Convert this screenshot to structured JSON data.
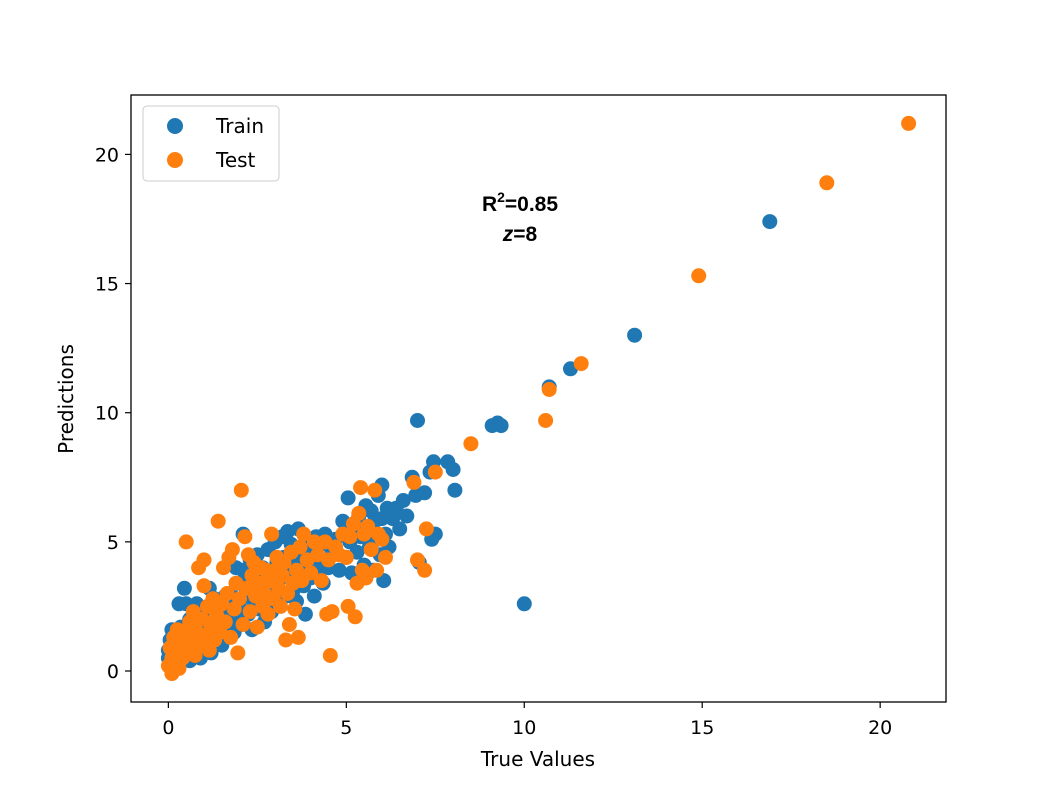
{
  "chart_data": {
    "type": "scatter",
    "xlabel": "True Values",
    "ylabel": "Predictions",
    "xlim": [
      -1.05,
      21.85
    ],
    "ylim": [
      -1.2,
      22.3
    ],
    "xticks": [
      0,
      5,
      10,
      15,
      20
    ],
    "yticks": [
      0,
      5,
      10,
      15,
      20
    ],
    "legend_position": "top-left",
    "annotation": {
      "r2_prefix": "R",
      "r2_sup": "2",
      "r2_value": "=0.85",
      "z_var": "z",
      "z_value": "=8"
    },
    "series": [
      {
        "name": "Train",
        "color": "#1f77b4",
        "points": [
          [
            0.0,
            0.5
          ],
          [
            0.0,
            0.8
          ],
          [
            0.05,
            1.2
          ],
          [
            0.1,
            1.6
          ],
          [
            0.1,
            0.3
          ],
          [
            0.15,
            1.0
          ],
          [
            0.2,
            0.6
          ],
          [
            0.2,
            1.4
          ],
          [
            0.25,
            0.2
          ],
          [
            0.3,
            0.9
          ],
          [
            0.3,
            2.6
          ],
          [
            0.35,
            1.7
          ],
          [
            0.4,
            0.5
          ],
          [
            0.4,
            1.2
          ],
          [
            0.45,
            3.2
          ],
          [
            0.5,
            2.6
          ],
          [
            0.5,
            0.8
          ],
          [
            0.55,
            1.5
          ],
          [
            0.6,
            2.0
          ],
          [
            0.6,
            0.4
          ],
          [
            0.65,
            1.1
          ],
          [
            0.7,
            1.8
          ],
          [
            0.7,
            2.2
          ],
          [
            0.75,
            0.7
          ],
          [
            0.8,
            1.4
          ],
          [
            0.8,
            2.6
          ],
          [
            0.85,
            0.9
          ],
          [
            0.9,
            1.7
          ],
          [
            0.9,
            0.5
          ],
          [
            0.95,
            1.3
          ],
          [
            1.0,
            2.0
          ],
          [
            1.0,
            0.8
          ],
          [
            1.05,
            1.5
          ],
          [
            1.1,
            2.4
          ],
          [
            1.1,
            1.0
          ],
          [
            1.15,
            3.2
          ],
          [
            1.2,
            1.6
          ],
          [
            1.2,
            0.7
          ],
          [
            1.25,
            2.1
          ],
          [
            1.3,
            1.2
          ],
          [
            1.3,
            2.8
          ],
          [
            1.35,
            1.9
          ],
          [
            1.4,
            1.4
          ],
          [
            1.45,
            2.3
          ],
          [
            1.5,
            1.0
          ],
          [
            1.5,
            2.0
          ],
          [
            1.55,
            1.6
          ],
          [
            1.6,
            2.9
          ],
          [
            1.65,
            1.3
          ],
          [
            1.7,
            2.4
          ],
          [
            1.7,
            1.8
          ],
          [
            1.75,
            3.0
          ],
          [
            1.8,
            2.2
          ],
          [
            1.85,
            1.5
          ],
          [
            1.9,
            2.7
          ],
          [
            1.9,
            4.0
          ],
          [
            1.95,
            2.0
          ],
          [
            2.0,
            3.4
          ],
          [
            2.0,
            2.5
          ],
          [
            2.05,
            1.8
          ],
          [
            2.1,
            3.9
          ],
          [
            2.1,
            5.3
          ],
          [
            2.15,
            2.9
          ],
          [
            2.2,
            3.6
          ],
          [
            2.25,
            2.2
          ],
          [
            2.3,
            4.3
          ],
          [
            2.3,
            3.1
          ],
          [
            2.35,
            1.6
          ],
          [
            2.4,
            2.7
          ],
          [
            2.45,
            3.8
          ],
          [
            2.5,
            4.5
          ],
          [
            2.5,
            3.2
          ],
          [
            2.55,
            2.4
          ],
          [
            2.6,
            3.6
          ],
          [
            2.65,
            4.0
          ],
          [
            2.7,
            2.9
          ],
          [
            2.7,
            1.9
          ],
          [
            2.75,
            3.4
          ],
          [
            2.8,
            4.7
          ],
          [
            2.85,
            3.0
          ],
          [
            2.9,
            2.3
          ],
          [
            2.95,
            3.9
          ],
          [
            3.0,
            5.0
          ],
          [
            3.0,
            3.3
          ],
          [
            3.05,
            4.2
          ],
          [
            3.1,
            2.6
          ],
          [
            3.15,
            3.6
          ],
          [
            3.2,
            5.2
          ],
          [
            3.25,
            4.4
          ],
          [
            3.3,
            2.9
          ],
          [
            3.35,
            5.4
          ],
          [
            3.4,
            3.7
          ],
          [
            3.45,
            4.9
          ],
          [
            3.5,
            3.1
          ],
          [
            3.55,
            4.3
          ],
          [
            3.6,
            2.7
          ],
          [
            3.65,
            5.5
          ],
          [
            3.7,
            3.9
          ],
          [
            3.75,
            4.6
          ],
          [
            3.8,
            3.3
          ],
          [
            3.85,
            2.2
          ],
          [
            3.9,
            4.1
          ],
          [
            3.95,
            5.0
          ],
          [
            4.0,
            3.6
          ],
          [
            4.05,
            4.5
          ],
          [
            4.1,
            2.9
          ],
          [
            4.15,
            5.2
          ],
          [
            4.2,
            3.8
          ],
          [
            4.25,
            4.3
          ],
          [
            4.3,
            4.9
          ],
          [
            4.35,
            3.4
          ],
          [
            4.4,
            5.3
          ],
          [
            4.5,
            4.0
          ],
          [
            4.6,
            4.7
          ],
          [
            4.7,
            5.1
          ],
          [
            4.8,
            3.9
          ],
          [
            4.9,
            5.8
          ],
          [
            5.0,
            4.4
          ],
          [
            5.05,
            6.7
          ],
          [
            5.1,
            5.0
          ],
          [
            5.15,
            3.8
          ],
          [
            5.2,
            5.5
          ],
          [
            5.3,
            4.6
          ],
          [
            5.35,
            6.0
          ],
          [
            5.4,
            5.2
          ],
          [
            5.5,
            4.1
          ],
          [
            5.55,
            6.4
          ],
          [
            5.6,
            5.6
          ],
          [
            5.65,
            4.8
          ],
          [
            5.7,
            6.2
          ],
          [
            5.75,
            3.9
          ],
          [
            5.8,
            5.8
          ],
          [
            5.85,
            5.1
          ],
          [
            5.9,
            6.8
          ],
          [
            5.95,
            4.5
          ],
          [
            6.0,
            5.9
          ],
          [
            6.0,
            7.2
          ],
          [
            6.05,
            3.5
          ],
          [
            6.1,
            5.3
          ],
          [
            6.15,
            6.3
          ],
          [
            6.2,
            4.8
          ],
          [
            6.3,
            5.9
          ],
          [
            6.4,
            6.3
          ],
          [
            6.5,
            5.5
          ],
          [
            6.6,
            6.6
          ],
          [
            6.7,
            6.0
          ],
          [
            6.85,
            7.5
          ],
          [
            6.95,
            6.8
          ],
          [
            7.0,
            9.7
          ],
          [
            7.05,
            4.2
          ],
          [
            7.2,
            6.9
          ],
          [
            7.35,
            7.7
          ],
          [
            7.45,
            8.1
          ],
          [
            7.5,
            5.3
          ],
          [
            7.4,
            5.1
          ],
          [
            7.85,
            8.1
          ],
          [
            8.0,
            7.8
          ],
          [
            8.05,
            7.0
          ],
          [
            9.1,
            9.5
          ],
          [
            9.25,
            9.6
          ],
          [
            9.35,
            9.5
          ],
          [
            10.0,
            2.6
          ],
          [
            10.7,
            11.0
          ],
          [
            11.3,
            11.7
          ],
          [
            13.1,
            13.0
          ],
          [
            16.9,
            17.4
          ]
        ]
      },
      {
        "name": "Test",
        "color": "#ff7f0e",
        "points": [
          [
            0.0,
            0.2
          ],
          [
            0.05,
            0.9
          ],
          [
            0.1,
            0.5
          ],
          [
            0.15,
            1.3
          ],
          [
            0.1,
            -0.1
          ],
          [
            0.2,
            0.7
          ],
          [
            0.25,
            1.6
          ],
          [
            0.3,
            0.1
          ],
          [
            0.35,
            1.0
          ],
          [
            0.4,
            0.5
          ],
          [
            0.45,
            1.4
          ],
          [
            0.5,
            5.0
          ],
          [
            0.55,
            0.8
          ],
          [
            0.6,
            1.9
          ],
          [
            0.65,
            1.2
          ],
          [
            0.7,
            2.3
          ],
          [
            0.75,
            0.6
          ],
          [
            0.8,
            1.5
          ],
          [
            0.85,
            4.0
          ],
          [
            0.9,
            1.0
          ],
          [
            0.95,
            2.0
          ],
          [
            1.0,
            3.3
          ],
          [
            1.0,
            4.3
          ],
          [
            1.05,
            1.4
          ],
          [
            1.1,
            2.5
          ],
          [
            1.15,
            0.8
          ],
          [
            1.2,
            1.8
          ],
          [
            1.25,
            2.8
          ],
          [
            1.3,
            1.2
          ],
          [
            1.35,
            2.2
          ],
          [
            1.4,
            5.8
          ],
          [
            1.45,
            1.5
          ],
          [
            1.5,
            2.6
          ],
          [
            1.55,
            4.0
          ],
          [
            1.6,
            1.9
          ],
          [
            1.65,
            3.0
          ],
          [
            1.7,
            4.4
          ],
          [
            1.75,
            1.3
          ],
          [
            1.8,
            4.7
          ],
          [
            1.85,
            2.4
          ],
          [
            1.9,
            3.4
          ],
          [
            1.95,
            0.7
          ],
          [
            2.0,
            2.8
          ],
          [
            2.05,
            7.0
          ],
          [
            2.1,
            1.8
          ],
          [
            2.15,
            5.2
          ],
          [
            2.2,
            3.2
          ],
          [
            2.25,
            4.5
          ],
          [
            2.3,
            2.3
          ],
          [
            2.35,
            3.7
          ],
          [
            2.4,
            4.2
          ],
          [
            2.45,
            2.9
          ],
          [
            2.5,
            1.7
          ],
          [
            2.55,
            3.4
          ],
          [
            2.6,
            4.0
          ],
          [
            2.65,
            2.5
          ],
          [
            2.7,
            3.0
          ],
          [
            2.75,
            3.9
          ],
          [
            2.8,
            2.2
          ],
          [
            2.85,
            3.5
          ],
          [
            2.9,
            5.3
          ],
          [
            2.95,
            2.8
          ],
          [
            3.0,
            3.9
          ],
          [
            3.05,
            4.4
          ],
          [
            3.1,
            3.2
          ],
          [
            3.15,
            2.5
          ],
          [
            3.2,
            3.7
          ],
          [
            3.25,
            4.2
          ],
          [
            3.3,
            1.2
          ],
          [
            3.35,
            3.0
          ],
          [
            3.4,
            1.8
          ],
          [
            3.45,
            4.6
          ],
          [
            3.5,
            3.4
          ],
          [
            3.55,
            2.4
          ],
          [
            3.6,
            3.9
          ],
          [
            3.65,
            1.3
          ],
          [
            3.7,
            4.8
          ],
          [
            3.75,
            3.5
          ],
          [
            3.8,
            5.3
          ],
          [
            3.9,
            4.3
          ],
          [
            4.0,
            3.8
          ],
          [
            4.1,
            5.0
          ],
          [
            4.2,
            4.5
          ],
          [
            4.3,
            3.5
          ],
          [
            4.4,
            5.0
          ],
          [
            4.45,
            2.2
          ],
          [
            4.5,
            4.3
          ],
          [
            4.55,
            0.6
          ],
          [
            4.6,
            2.3
          ],
          [
            4.7,
            4.8
          ],
          [
            4.8,
            4.5
          ],
          [
            4.9,
            5.3
          ],
          [
            5.0,
            4.4
          ],
          [
            5.05,
            2.5
          ],
          [
            5.1,
            5.2
          ],
          [
            5.2,
            5.7
          ],
          [
            5.25,
            2.1
          ],
          [
            5.3,
            3.4
          ],
          [
            5.35,
            6.1
          ],
          [
            5.4,
            7.1
          ],
          [
            5.45,
            3.9
          ],
          [
            5.5,
            5.3
          ],
          [
            5.55,
            3.6
          ],
          [
            5.6,
            5.6
          ],
          [
            5.7,
            4.7
          ],
          [
            5.8,
            7.0
          ],
          [
            5.85,
            3.9
          ],
          [
            5.9,
            5.3
          ],
          [
            6.0,
            5.1
          ],
          [
            6.1,
            4.4
          ],
          [
            6.9,
            7.3
          ],
          [
            7.0,
            4.3
          ],
          [
            7.2,
            3.9
          ],
          [
            7.25,
            5.5
          ],
          [
            7.5,
            7.7
          ],
          [
            8.5,
            8.8
          ],
          [
            10.6,
            9.7
          ],
          [
            10.7,
            10.9
          ],
          [
            11.6,
            11.9
          ],
          [
            14.9,
            15.3
          ],
          [
            18.5,
            18.9
          ],
          [
            20.8,
            21.2
          ]
        ]
      }
    ]
  }
}
